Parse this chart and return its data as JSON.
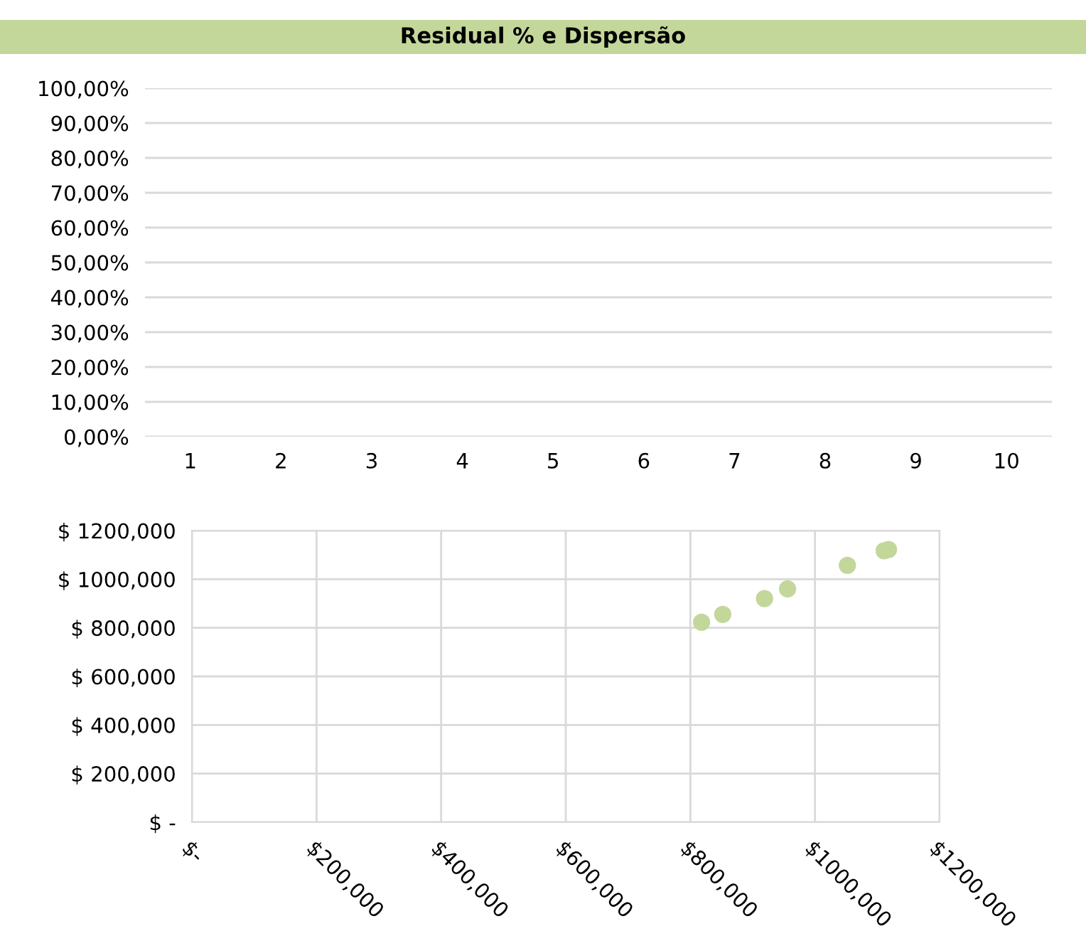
{
  "chart_data": [
    {
      "type": "line",
      "title": "Residual % e Dispersão",
      "categories": [
        "1",
        "2",
        "3",
        "4",
        "5",
        "6",
        "7",
        "8",
        "9",
        "10"
      ],
      "series": [
        {
          "color": "#c4d79b",
          "values": [
            null,
            null,
            null,
            null,
            null,
            null,
            null,
            null,
            null,
            null
          ]
        }
      ],
      "ylim": [
        0,
        100
      ],
      "yticks": [
        {
          "value": 0,
          "label": "0,00%"
        },
        {
          "value": 10,
          "label": "10,00%"
        },
        {
          "value": 20,
          "label": "20,00%"
        },
        {
          "value": 30,
          "label": "30,00%"
        },
        {
          "value": 40,
          "label": "40,00%"
        },
        {
          "value": 50,
          "label": "50,00%"
        },
        {
          "value": 60,
          "label": "60,00%"
        },
        {
          "value": 70,
          "label": "70,00%"
        },
        {
          "value": 80,
          "label": "80,00%"
        },
        {
          "value": 90,
          "label": "90,00%"
        },
        {
          "value": 100,
          "label": "100,00%"
        }
      ],
      "grid": "y"
    },
    {
      "type": "scatter",
      "x": [
        818000,
        852000,
        919000,
        956000,
        1052000,
        1111000,
        1118000
      ],
      "series": [
        {
          "color": "#c4d79b",
          "values": [
            823000,
            855000,
            920000,
            960000,
            1057000,
            1117000,
            1122000
          ]
        }
      ],
      "xlim": [
        0,
        1200000
      ],
      "xticks": [
        {
          "value": 0,
          "label": "$-"
        },
        {
          "value": 200000,
          "label": "$200,000"
        },
        {
          "value": 400000,
          "label": "$400,000"
        },
        {
          "value": 600000,
          "label": "$600,000"
        },
        {
          "value": 800000,
          "label": "$800,000"
        },
        {
          "value": 1000000,
          "label": "$1000,000"
        },
        {
          "value": 1200000,
          "label": "$1200,000"
        }
      ],
      "ylim": [
        0,
        1200000
      ],
      "yticks": [
        {
          "value": 0,
          "label": "$ -"
        },
        {
          "value": 200000,
          "label": "$ 200,000"
        },
        {
          "value": 400000,
          "label": "$ 400,000"
        },
        {
          "value": 600000,
          "label": "$ 600,000"
        },
        {
          "value": 800000,
          "label": "$ 800,000"
        },
        {
          "value": 1000000,
          "label": "$ 1000,000"
        },
        {
          "value": 1200000,
          "label": "$ 1200,000"
        }
      ],
      "grid": true,
      "marker": "circle"
    }
  ]
}
